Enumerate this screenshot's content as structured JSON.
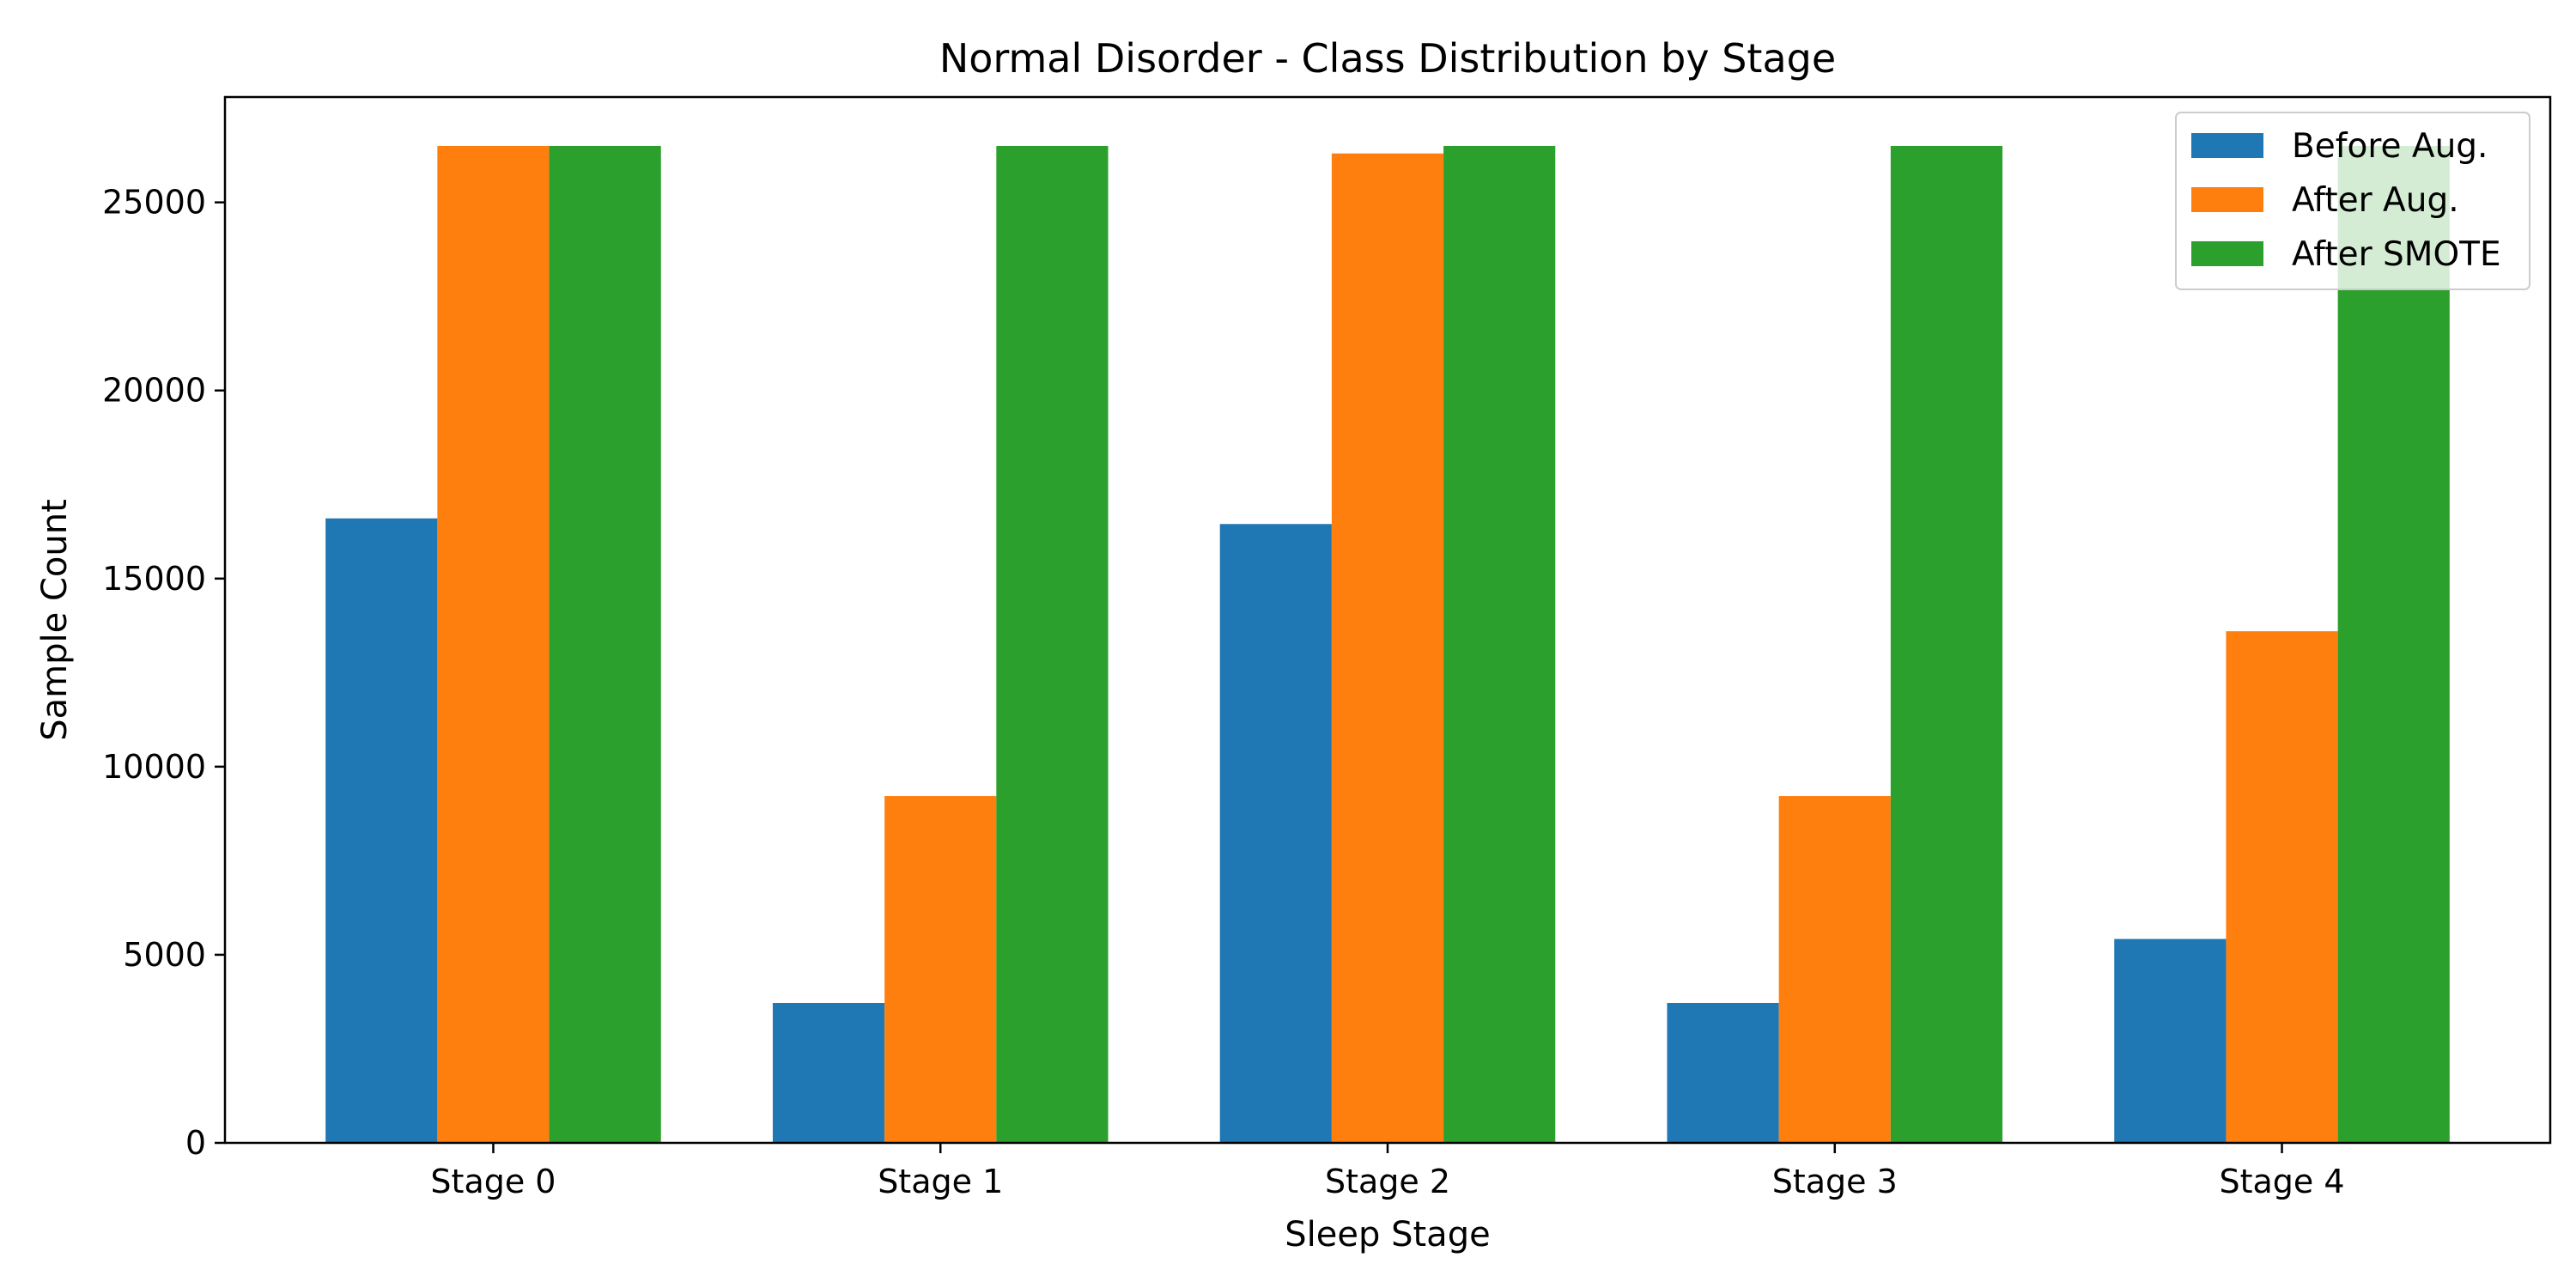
{
  "chart_data": {
    "type": "bar",
    "title": "Normal Disorder - Class Distribution by Stage",
    "xlabel": "Sleep Stage",
    "ylabel": "Sample Count",
    "categories": [
      "Stage 0",
      "Stage 1",
      "Stage 2",
      "Stage 3",
      "Stage 4"
    ],
    "ylim": [
      0,
      27800
    ],
    "yticks": [
      0,
      5000,
      10000,
      15000,
      20000,
      25000
    ],
    "grid": false,
    "legend_position": "top-right",
    "series": [
      {
        "name": "Before Aug.",
        "color": "#1f77b4",
        "values": [
          16600,
          3720,
          16450,
          3720,
          5420
        ]
      },
      {
        "name": "After Aug.",
        "color": "#ff7f0e",
        "values": [
          26500,
          9220,
          26300,
          9220,
          13600
        ]
      },
      {
        "name": "After SMOTE",
        "color": "#2ca02c",
        "values": [
          26500,
          26500,
          26500,
          26500,
          26500
        ]
      }
    ]
  }
}
